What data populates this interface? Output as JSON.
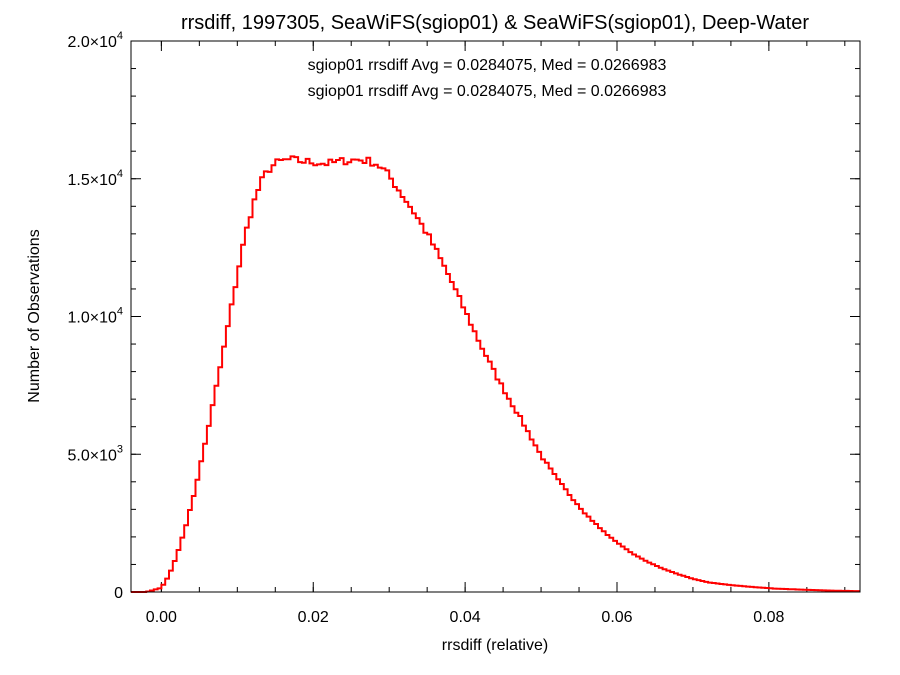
{
  "chart_data": {
    "type": "line",
    "step": true,
    "title": "rrsdiff, 1997305, SeaWiFS(sgiop01) & SeaWiFS(sgiop01), Deep-Water",
    "xlabel": "rrsdiff (relative)",
    "ylabel": "Number of Observations",
    "xlim": [
      -0.004,
      0.092
    ],
    "ylim": [
      0,
      20000
    ],
    "grid": false,
    "x_ticks": [
      {
        "value": 0.0,
        "label": "0.00"
      },
      {
        "value": 0.02,
        "label": "0.02"
      },
      {
        "value": 0.04,
        "label": "0.04"
      },
      {
        "value": 0.06,
        "label": "0.06"
      },
      {
        "value": 0.08,
        "label": "0.08"
      }
    ],
    "x_minor_step": 0.005,
    "y_ticks": [
      {
        "value": 0,
        "mant": "0",
        "exp": ""
      },
      {
        "value": 5000,
        "mant": "5.0×10",
        "exp": "3"
      },
      {
        "value": 10000,
        "mant": "1.0×10",
        "exp": "4"
      },
      {
        "value": 15000,
        "mant": "1.5×10",
        "exp": "4"
      },
      {
        "value": 20000,
        "mant": "2.0×10",
        "exp": "4"
      }
    ],
    "y_minor_step": 1000,
    "annotations": [
      {
        "text": "sgiop01 rrsdiff Avg = 0.0284075, Med = 0.0266983",
        "color": "#000000"
      },
      {
        "text": "sgiop01 rrsdiff Avg = 0.0284075, Med = 0.0266983",
        "color": "#ff0000"
      }
    ],
    "series": [
      {
        "color": "#ff0000",
        "x": [
          -0.004,
          -0.002,
          0.0,
          0.001,
          0.002,
          0.003,
          0.004,
          0.005,
          0.006,
          0.007,
          0.008,
          0.009,
          0.01,
          0.011,
          0.012,
          0.013,
          0.014,
          0.015,
          0.016,
          0.017,
          0.018,
          0.02,
          0.022,
          0.024,
          0.026,
          0.028,
          0.029,
          0.03,
          0.031,
          0.032,
          0.033,
          0.034,
          0.035,
          0.036,
          0.037,
          0.038,
          0.039,
          0.04,
          0.041,
          0.042,
          0.043,
          0.044,
          0.045,
          0.046,
          0.047,
          0.048,
          0.049,
          0.05,
          0.052,
          0.054,
          0.056,
          0.058,
          0.06,
          0.062,
          0.064,
          0.066,
          0.068,
          0.07,
          0.072,
          0.075,
          0.078,
          0.081,
          0.084,
          0.087,
          0.09,
          0.092
        ],
        "y": [
          0,
          0,
          150,
          600,
          1300,
          2200,
          3200,
          4400,
          5700,
          7100,
          8500,
          10000,
          11500,
          12900,
          14000,
          14800,
          15300,
          15550,
          15650,
          15700,
          15650,
          15600,
          15550,
          15650,
          15700,
          15600,
          15400,
          15100,
          14700,
          14300,
          13900,
          13450,
          13000,
          12500,
          11950,
          11400,
          10800,
          10200,
          9600,
          9000,
          8450,
          7900,
          7400,
          6900,
          6450,
          5950,
          5450,
          4950,
          4150,
          3450,
          2800,
          2250,
          1800,
          1400,
          1100,
          850,
          650,
          480,
          350,
          250,
          180,
          120,
          90,
          60,
          40,
          30
        ]
      }
    ]
  }
}
